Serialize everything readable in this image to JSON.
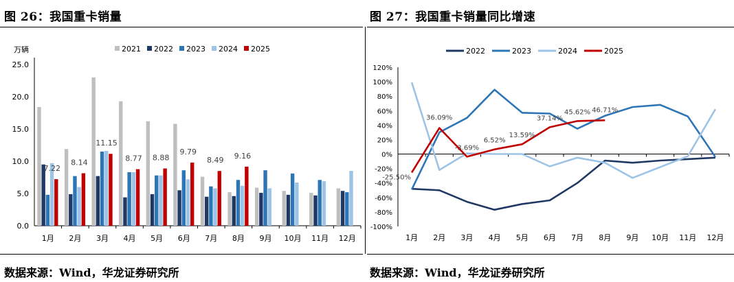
{
  "left_title": "图 26：我国重卡销量",
  "right_title": "图 27：我国重卡销量同比增速",
  "left_source": "数据来源：Wind，华龙证券研究所",
  "right_source": "数据来源：Wind，华龙证券研究所",
  "chart_data": [
    {
      "type": "bar",
      "title": "我国重卡销量",
      "ylabel": "万辆",
      "xlabel": "",
      "ylim": [
        0,
        25
      ],
      "yticks": [
        "0.0",
        "5.0",
        "10.0",
        "15.0",
        "20.0",
        "25.0"
      ],
      "categories": [
        "1月",
        "2月",
        "3月",
        "4月",
        "5月",
        "6月",
        "7月",
        "8月",
        "9月",
        "10月",
        "11月",
        "12月"
      ],
      "legend_position": "top",
      "series": [
        {
          "name": "2021",
          "color": "#bfbfbf",
          "values": [
            18.4,
            11.9,
            23.0,
            19.3,
            16.2,
            15.8,
            7.6,
            5.2,
            5.9,
            5.4,
            5.1,
            5.8
          ]
        },
        {
          "name": "2022",
          "color": "#1f3864",
          "values": [
            9.5,
            4.9,
            7.7,
            4.4,
            4.9,
            5.5,
            4.5,
            4.6,
            5.1,
            4.8,
            4.7,
            5.4
          ]
        },
        {
          "name": "2023",
          "color": "#2e75b6",
          "values": [
            4.8,
            7.7,
            11.5,
            8.3,
            7.8,
            8.6,
            6.1,
            7.1,
            8.6,
            8.1,
            7.1,
            5.2
          ]
        },
        {
          "name": "2024",
          "color": "#9dc3e6",
          "values": [
            9.7,
            6.0,
            11.6,
            8.3,
            7.8,
            7.2,
            5.8,
            6.2,
            5.8,
            6.7,
            6.9,
            8.5
          ]
        },
        {
          "name": "2025",
          "color": "#c00000",
          "values": [
            7.22,
            8.14,
            11.15,
            8.77,
            8.88,
            9.79,
            8.49,
            9.16,
            null,
            null,
            null,
            null
          ]
        }
      ],
      "data_labels": [
        "7.22",
        "8.14",
        "11.15",
        "8.77",
        "8.88",
        "9.79",
        "8.49",
        "9.16"
      ]
    },
    {
      "type": "line",
      "title": "我国重卡销量同比增速",
      "xlabel": "",
      "ylabel": "",
      "ylim": [
        -100,
        120
      ],
      "yticks": [
        "-100%",
        "-80%",
        "-60%",
        "-40%",
        "-20%",
        "0%",
        "20%",
        "40%",
        "60%",
        "80%",
        "100%",
        "120%"
      ],
      "categories": [
        "1月",
        "2月",
        "3月",
        "4月",
        "5月",
        "6月",
        "7月",
        "8月",
        "9月",
        "10月",
        "11月",
        "12月"
      ],
      "legend_position": "top",
      "series": [
        {
          "name": "2022",
          "color": "#1f3864",
          "values": [
            -48,
            -50,
            -66,
            -77,
            -69,
            -64,
            -40,
            -9,
            -12,
            -9,
            -7,
            -5
          ]
        },
        {
          "name": "2023",
          "color": "#2e75b6",
          "values": [
            -49,
            30,
            50,
            89,
            57,
            56,
            35,
            53,
            65,
            68,
            52,
            -4
          ]
        },
        {
          "name": "2024",
          "color": "#9dc3e6",
          "values": [
            99,
            -22,
            1,
            0,
            0,
            -17,
            -5,
            -12,
            -33,
            -18,
            -3,
            62
          ]
        },
        {
          "name": "2025",
          "color": "#c00000",
          "values": [
            -25.5,
            36.09,
            -3.69,
            6.52,
            13.59,
            37.14,
            45.62,
            46.71,
            null,
            null,
            null,
            null
          ]
        }
      ],
      "data_labels": [
        "-25.50%",
        "36.09%",
        "-3.69%",
        "6.52%",
        "13.59%",
        "37.14%",
        "45.62%",
        "46.71%"
      ]
    }
  ]
}
